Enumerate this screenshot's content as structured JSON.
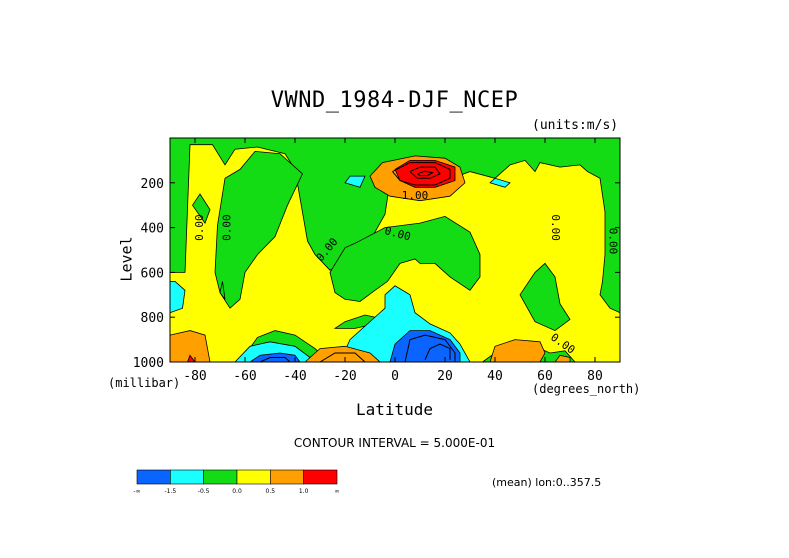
{
  "chart_data": {
    "type": "heatmap",
    "title": "VWND_1984-DJF_NCEP",
    "units_label": "(units:m/s)",
    "xlabel": "Latitude",
    "x_unit_label": "(degrees_north)",
    "ylabel": "Level",
    "y_unit_label": "(millibar)",
    "xlim": [
      -90,
      90
    ],
    "ylim": [
      1000,
      0
    ],
    "x_ticks": [
      -80,
      -60,
      -40,
      -20,
      0,
      20,
      40,
      60,
      80
    ],
    "y_ticks": [
      200,
      400,
      600,
      800,
      1000
    ],
    "contour_interval_text": "CONTOUR INTERVAL = 5.000E-01",
    "contour_labels": [
      "0.00",
      "0.00",
      "0.00",
      "0.00",
      "1.00",
      "0.00",
      "0.00",
      "0.00"
    ],
    "mean_info": "(mean) lon:0..357.5",
    "colorbar": {
      "colors": [
        "#0a64ff",
        "#19ffff",
        "#14dc14",
        "#ffff00",
        "#ffa000",
        "#ff0000"
      ],
      "labels": [
        "-∞",
        "-1.5",
        "-0.5",
        "0.0",
        "0.5",
        "1.0",
        "∞"
      ]
    },
    "regions": {
      "green": [
        [
          [
            -82,
            30
          ],
          [
            -73,
            30
          ],
          [
            -68,
            120
          ],
          [
            -64,
            50
          ],
          [
            -55,
            40
          ],
          [
            -44,
            70
          ],
          [
            -40,
            140
          ],
          [
            -35,
            460
          ],
          [
            -32,
            520
          ],
          [
            -26,
            590
          ],
          [
            -16,
            530
          ],
          [
            -10,
            460
          ],
          [
            -4,
            340
          ],
          [
            -1,
            120
          ],
          [
            8,
            130
          ],
          [
            12,
            270
          ],
          [
            20,
            190
          ],
          [
            30,
            150
          ],
          [
            40,
            180
          ],
          [
            46,
            120
          ],
          [
            52,
            100
          ],
          [
            56,
            150
          ],
          [
            58,
            110
          ],
          [
            66,
            130
          ],
          [
            74,
            120
          ],
          [
            77,
            150
          ],
          [
            82,
            180
          ],
          [
            84,
            330
          ],
          [
            84,
            520
          ],
          [
            83,
            640
          ],
          [
            82,
            700
          ],
          [
            86,
            760
          ],
          [
            90,
            780
          ],
          [
            90,
            0
          ],
          [
            -90,
            0
          ],
          [
            -90,
            600
          ],
          [
            -84,
            600
          ]
        ],
        [
          [
            -72,
            600
          ],
          [
            -70,
            690
          ],
          [
            -66,
            760
          ],
          [
            -62,
            720
          ],
          [
            -60,
            600
          ],
          [
            -55,
            520
          ],
          [
            -48,
            440
          ],
          [
            -43,
            300
          ],
          [
            -37,
            160
          ],
          [
            -46,
            70
          ],
          [
            -56,
            60
          ],
          [
            -62,
            140
          ],
          [
            -68,
            180
          ],
          [
            -71,
            390
          ]
        ],
        [
          [
            -4,
            400
          ],
          [
            -16,
            470
          ],
          [
            -20,
            490
          ],
          [
            -26,
            600
          ],
          [
            -24,
            690
          ],
          [
            -20,
            720
          ],
          [
            -14,
            730
          ],
          [
            -8,
            680
          ],
          [
            -3,
            640
          ],
          [
            2,
            560
          ],
          [
            8,
            540
          ],
          [
            10,
            560
          ],
          [
            16,
            560
          ],
          [
            22,
            620
          ],
          [
            30,
            680
          ],
          [
            34,
            620
          ],
          [
            34,
            520
          ],
          [
            30,
            420
          ],
          [
            20,
            350
          ],
          [
            10,
            380
          ]
        ],
        [
          [
            -16,
            850
          ],
          [
            -8,
            830
          ],
          [
            -4,
            810
          ],
          [
            -12,
            790
          ],
          [
            -20,
            820
          ],
          [
            -24,
            850
          ]
        ],
        [
          [
            -84,
            1000
          ],
          [
            -82,
            900
          ],
          [
            -86,
            880
          ],
          [
            -90,
            880
          ],
          [
            -90,
            1000
          ]
        ],
        [
          [
            -62,
            1000
          ],
          [
            -55,
            890
          ],
          [
            -48,
            860
          ],
          [
            -40,
            880
          ],
          [
            -32,
            940
          ],
          [
            -26,
            1000
          ]
        ],
        [
          [
            35,
            1000
          ],
          [
            40,
            960
          ],
          [
            46,
            930
          ],
          [
            56,
            930
          ],
          [
            62,
            960
          ],
          [
            68,
            950
          ],
          [
            72,
            1000
          ]
        ],
        [
          [
            50,
            700
          ],
          [
            56,
            600
          ],
          [
            60,
            560
          ],
          [
            64,
            620
          ],
          [
            66,
            740
          ],
          [
            70,
            810
          ],
          [
            64,
            860
          ],
          [
            56,
            820
          ]
        ],
        [
          [
            -81,
            300
          ],
          [
            -76,
            380
          ],
          [
            -74,
            320
          ],
          [
            -78,
            250
          ]
        ],
        [
          [
            -69,
            640
          ],
          [
            -68,
            720
          ],
          [
            -70,
            690
          ]
        ]
      ],
      "cyan": [
        [
          [
            -14,
            220
          ],
          [
            -12,
            170
          ],
          [
            -18,
            170
          ],
          [
            -20,
            200
          ]
        ],
        [
          [
            38,
            200
          ],
          [
            44,
            220
          ],
          [
            46,
            200
          ],
          [
            40,
            180
          ]
        ],
        [
          [
            -88,
            640
          ],
          [
            -84,
            680
          ],
          [
            -85,
            760
          ],
          [
            -90,
            780
          ],
          [
            -90,
            640
          ]
        ],
        [
          [
            -22,
            1000
          ],
          [
            -18,
            900
          ],
          [
            -4,
            760
          ],
          [
            -4,
            700
          ],
          [
            0,
            660
          ],
          [
            6,
            700
          ],
          [
            8,
            780
          ],
          [
            14,
            830
          ],
          [
            22,
            870
          ],
          [
            26,
            920
          ],
          [
            30,
            1000
          ]
        ],
        [
          [
            -64,
            1000
          ],
          [
            -58,
            930
          ],
          [
            -50,
            910
          ],
          [
            -40,
            930
          ],
          [
            -34,
            980
          ],
          [
            -30,
            1000
          ]
        ]
      ],
      "orange": [
        [
          [
            -10,
            170
          ],
          [
            -5,
            110
          ],
          [
            8,
            80
          ],
          [
            20,
            90
          ],
          [
            26,
            130
          ],
          [
            28,
            200
          ],
          [
            22,
            260
          ],
          [
            10,
            280
          ],
          [
            -2,
            260
          ],
          [
            -8,
            220
          ]
        ],
        [
          [
            -90,
            1000
          ],
          [
            -90,
            880
          ],
          [
            -82,
            860
          ],
          [
            -76,
            880
          ],
          [
            -74,
            1000
          ]
        ],
        [
          [
            -36,
            1000
          ],
          [
            -30,
            940
          ],
          [
            -20,
            930
          ],
          [
            -10,
            960
          ],
          [
            -6,
            1000
          ]
        ],
        [
          [
            38,
            1000
          ],
          [
            40,
            930
          ],
          [
            48,
            900
          ],
          [
            58,
            910
          ],
          [
            60,
            960
          ],
          [
            58,
            1000
          ]
        ],
        [
          [
            64,
            1000
          ],
          [
            66,
            970
          ],
          [
            70,
            980
          ],
          [
            70,
            1000
          ]
        ]
      ],
      "red": [
        [
          [
            2,
            190
          ],
          [
            0,
            140
          ],
          [
            6,
            100
          ],
          [
            16,
            100
          ],
          [
            24,
            130
          ],
          [
            24,
            190
          ],
          [
            16,
            220
          ],
          [
            8,
            220
          ]
        ],
        [
          [
            -83,
            1000
          ],
          [
            -82,
            970
          ],
          [
            -80,
            1000
          ]
        ]
      ],
      "blue": [
        [
          [
            -58,
            1000
          ],
          [
            -54,
            970
          ],
          [
            -46,
            960
          ],
          [
            -40,
            970
          ],
          [
            -38,
            1000
          ]
        ],
        [
          [
            -2,
            1000
          ],
          [
            0,
            920
          ],
          [
            6,
            860
          ],
          [
            14,
            860
          ],
          [
            22,
            900
          ],
          [
            26,
            960
          ],
          [
            26,
            1000
          ]
        ]
      ]
    },
    "contours": [
      [
        [
          -1,
          150
        ],
        [
          6,
          110
        ],
        [
          16,
          110
        ],
        [
          22,
          140
        ],
        [
          22,
          180
        ],
        [
          16,
          210
        ],
        [
          8,
          210
        ],
        [
          2,
          190
        ],
        [
          -1,
          150
        ]
      ],
      [
        [
          6,
          150
        ],
        [
          10,
          130
        ],
        [
          16,
          130
        ],
        [
          18,
          160
        ],
        [
          14,
          180
        ],
        [
          9,
          180
        ],
        [
          6,
          150
        ]
      ],
      [
        [
          9,
          160
        ],
        [
          12,
          148
        ],
        [
          15,
          155
        ],
        [
          13,
          168
        ],
        [
          10,
          168
        ],
        [
          9,
          160
        ]
      ],
      [
        [
          12,
          990
        ],
        [
          14,
          940
        ],
        [
          18,
          920
        ],
        [
          22,
          940
        ],
        [
          22,
          990
        ]
      ],
      [
        [
          4,
          1000
        ],
        [
          6,
          900
        ],
        [
          12,
          880
        ],
        [
          20,
          900
        ],
        [
          24,
          960
        ],
        [
          24,
          1000
        ]
      ],
      [
        [
          -54,
          1000
        ],
        [
          -50,
          980
        ],
        [
          -44,
          980
        ],
        [
          -42,
          1000
        ]
      ],
      [
        [
          -30,
          1000
        ],
        [
          -24,
          960
        ],
        [
          -16,
          960
        ],
        [
          -12,
          1000
        ]
      ]
    ]
  }
}
